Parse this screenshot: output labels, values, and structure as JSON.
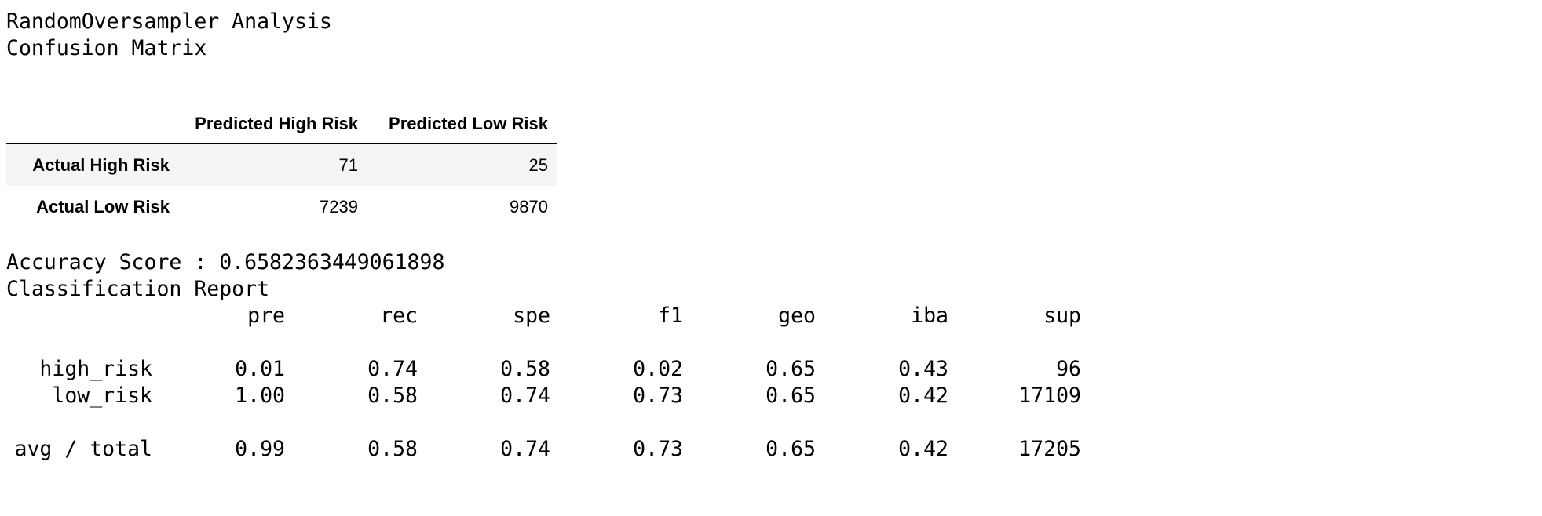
{
  "header": {
    "title": "RandomOversampler Analysis",
    "subtitle": "Confusion Matrix"
  },
  "confusion_matrix": {
    "columns": [
      "Predicted High Risk",
      "Predicted Low Risk"
    ],
    "rows": [
      {
        "label": "Actual High Risk",
        "values": [
          "71",
          "25"
        ]
      },
      {
        "label": "Actual Low Risk",
        "values": [
          "7239",
          "9870"
        ]
      }
    ]
  },
  "accuracy": {
    "text": "Accuracy Score : 0.6582363449061898"
  },
  "report": {
    "title": "Classification Report",
    "columns": [
      "pre",
      "rec",
      "spe",
      "f1",
      "geo",
      "iba",
      "sup"
    ],
    "rows": [
      {
        "label": "high_risk",
        "values": [
          "0.01",
          "0.74",
          "0.58",
          "0.02",
          "0.65",
          "0.43",
          "96"
        ]
      },
      {
        "label": "low_risk",
        "values": [
          "1.00",
          "0.58",
          "0.74",
          "0.73",
          "0.65",
          "0.42",
          "17109"
        ]
      }
    ],
    "total": {
      "label": "avg / total",
      "values": [
        "0.99",
        "0.58",
        "0.74",
        "0.73",
        "0.65",
        "0.42",
        "17205"
      ]
    }
  }
}
